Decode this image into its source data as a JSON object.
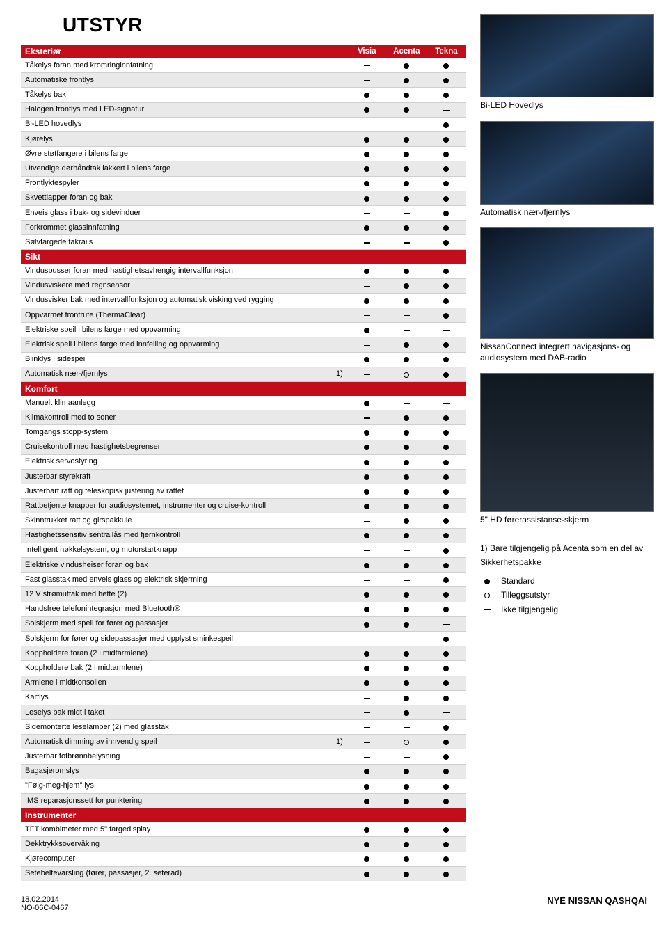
{
  "title": "UTSTYR",
  "trims": [
    "Visia",
    "Acenta",
    "Tekna"
  ],
  "sections": [
    {
      "name": "Eksteriør",
      "show_trims": true,
      "rows": [
        {
          "label": "Tåkelys foran med kromringinnfatning",
          "marks": [
            "-",
            "•",
            "•"
          ]
        },
        {
          "label": "Automatiske frontlys",
          "marks": [
            "-",
            "•",
            "•"
          ]
        },
        {
          "label": "Tåkelys bak",
          "marks": [
            "•",
            "•",
            "•"
          ]
        },
        {
          "label": "Halogen frontlys med LED-signatur",
          "marks": [
            "•",
            "•",
            "-"
          ]
        },
        {
          "label": "Bi-LED hovedlys",
          "marks": [
            "-",
            "-",
            "•"
          ]
        },
        {
          "label": "Kjørelys",
          "marks": [
            "•",
            "•",
            "•"
          ]
        },
        {
          "label": "Øvre støtfangere i bilens farge",
          "marks": [
            "•",
            "•",
            "•"
          ]
        },
        {
          "label": "Utvendige dørhåndtak lakkert i bilens farge",
          "marks": [
            "•",
            "•",
            "•"
          ]
        },
        {
          "label": "Frontlyktespyler",
          "marks": [
            "•",
            "•",
            "•"
          ]
        },
        {
          "label": "Skvettlapper foran og bak",
          "marks": [
            "•",
            "•",
            "•"
          ]
        },
        {
          "label": "Enveis glass i bak- og sidevinduer",
          "marks": [
            "-",
            "-",
            "•"
          ]
        },
        {
          "label": "Forkrommet glassinnfatning",
          "marks": [
            "•",
            "•",
            "•"
          ]
        },
        {
          "label": "Sølvfargede takrails",
          "marks": [
            "-",
            "-",
            "•"
          ]
        }
      ]
    },
    {
      "name": "Sikt",
      "show_trims": false,
      "rows": [
        {
          "label": "Vinduspusser foran med hastighetsavhengig intervallfunksjon",
          "marks": [
            "•",
            "•",
            "•"
          ]
        },
        {
          "label": "Vindusviskere med regnsensor",
          "marks": [
            "-",
            "•",
            "•"
          ]
        },
        {
          "label": "Vindusvisker bak med intervallfunksjon og automatisk visking ved rygging",
          "marks": [
            "•",
            "•",
            "•"
          ]
        },
        {
          "label": "Oppvarmet frontrute (ThermaClear)",
          "marks": [
            "-",
            "-",
            "•"
          ]
        },
        {
          "label": "Elektriske speil i bilens farge med oppvarming",
          "marks": [
            "•",
            "-",
            "-"
          ]
        },
        {
          "label": "Elektrisk speil i bilens farge med innfelling og oppvarming",
          "marks": [
            "-",
            "•",
            "•"
          ]
        },
        {
          "label": "Blinklys i sidespeil",
          "marks": [
            "•",
            "•",
            "•"
          ]
        },
        {
          "label": "Automatisk nær-/fjernlys",
          "note": "1)",
          "marks": [
            "-",
            "○",
            "•"
          ]
        }
      ]
    },
    {
      "name": "Komfort",
      "show_trims": false,
      "rows": [
        {
          "label": "Manuelt klimaanlegg",
          "marks": [
            "•",
            "-",
            "-"
          ]
        },
        {
          "label": "Klimakontroll med to soner",
          "marks": [
            "-",
            "•",
            "•"
          ]
        },
        {
          "label": "Tomgangs stopp-system",
          "marks": [
            "•",
            "•",
            "•"
          ]
        },
        {
          "label": "Cruisekontroll med hastighetsbegrenser",
          "marks": [
            "•",
            "•",
            "•"
          ]
        },
        {
          "label": "Elektrisk servostyring",
          "marks": [
            "•",
            "•",
            "•"
          ]
        },
        {
          "label": "Justerbar styrekraft",
          "marks": [
            "•",
            "•",
            "•"
          ]
        },
        {
          "label": "Justerbart ratt og teleskopisk justering av rattet",
          "marks": [
            "•",
            "•",
            "•"
          ]
        },
        {
          "label": "Rattbetjente knapper for audiosystemet, instrumenter og cruise-kontroll",
          "marks": [
            "•",
            "•",
            "•"
          ]
        },
        {
          "label": "Skinntrukket ratt og girspakkule",
          "marks": [
            "-",
            "•",
            "•"
          ]
        },
        {
          "label": "Hastighetssensitiv sentrallås med fjernkontroll",
          "marks": [
            "•",
            "•",
            "•"
          ]
        },
        {
          "label": "Intelligent nøkkelsystem, og motorstartknapp",
          "marks": [
            "-",
            "-",
            "•"
          ]
        },
        {
          "label": "Elektriske vindusheiser foran og bak",
          "marks": [
            "•",
            "•",
            "•"
          ]
        },
        {
          "label": "Fast glasstak med enveis glass og elektrisk skjerming",
          "marks": [
            "-",
            "-",
            "•"
          ]
        },
        {
          "label": "12 V strømuttak med hette (2)",
          "marks": [
            "•",
            "•",
            "•"
          ]
        },
        {
          "label": "Handsfree telefonintegrasjon med Bluetooth®",
          "marks": [
            "•",
            "•",
            "•"
          ]
        },
        {
          "label": "Solskjerm med speil for fører og passasjer",
          "marks": [
            "•",
            "•",
            "-"
          ]
        },
        {
          "label": "Solskjerm for fører og sidepassasjer med opplyst sminkespeil",
          "marks": [
            "-",
            "-",
            "•"
          ]
        },
        {
          "label": "Koppholdere foran (2 i midtarmlene)",
          "marks": [
            "•",
            "•",
            "•"
          ]
        },
        {
          "label": "Koppholdere bak (2 i midtarmlene)",
          "marks": [
            "•",
            "•",
            "•"
          ]
        },
        {
          "label": "Armlene i midtkonsollen",
          "marks": [
            "•",
            "•",
            "•"
          ]
        },
        {
          "label": "Kartlys",
          "marks": [
            "-",
            "•",
            "•"
          ]
        },
        {
          "label": "Leselys bak midt i taket",
          "marks": [
            "-",
            "•",
            "-"
          ]
        },
        {
          "label": "Sidemonterte leselamper (2) med glasstak",
          "marks": [
            "-",
            "-",
            "•"
          ]
        },
        {
          "label": "Automatisk dimming av innvendig speil",
          "note": "1)",
          "marks": [
            "-",
            "○",
            "•"
          ]
        },
        {
          "label": "Justerbar fotbrønnbelysning",
          "marks": [
            "-",
            "-",
            "•"
          ]
        },
        {
          "label": "Bagasjeromslys",
          "marks": [
            "•",
            "•",
            "•"
          ]
        },
        {
          "label": "\"Følg-meg-hjem\" lys",
          "marks": [
            "•",
            "•",
            "•"
          ]
        },
        {
          "label": "IMS reparasjonssett for punktering",
          "marks": [
            "•",
            "•",
            "•"
          ]
        }
      ]
    },
    {
      "name": "Instrumenter",
      "show_trims": false,
      "rows": [
        {
          "label": "TFT kombimeter med 5\" fargedisplay",
          "marks": [
            "•",
            "•",
            "•"
          ]
        },
        {
          "label": "Dekktrykksovervåking",
          "marks": [
            "•",
            "•",
            "•"
          ]
        },
        {
          "label": "Kjørecomputer",
          "marks": [
            "•",
            "•",
            "•"
          ]
        },
        {
          "label": "Setebeltevarsling (fører, passasjer, 2. seterad)",
          "marks": [
            "•",
            "•",
            "•"
          ]
        }
      ]
    }
  ],
  "right": {
    "cap1": "Bi-LED Hovedlys",
    "cap2": "Automatisk nær-/fjernlys",
    "cap3": "NissanConnect integrert navigasjons- og audiosystem med DAB-radio",
    "cap4": "5\" HD førerassistanse-skjerm",
    "legend_note": "1) Bare tilgjengelig på Acenta som en del av Sikkerhetspakke",
    "legend_std": "Standard",
    "legend_opt": "Tilleggsutstyr",
    "legend_na": "Ikke tilgjengelig"
  },
  "footer": {
    "left1": "18.02.2014",
    "left2": "NO-06C-0467",
    "right": "NYE NISSAN QASHQAI"
  },
  "colors": {
    "section_bg": "#c20e1a",
    "alt_row": "#e9e9e9",
    "border": "#cfcfcf"
  }
}
